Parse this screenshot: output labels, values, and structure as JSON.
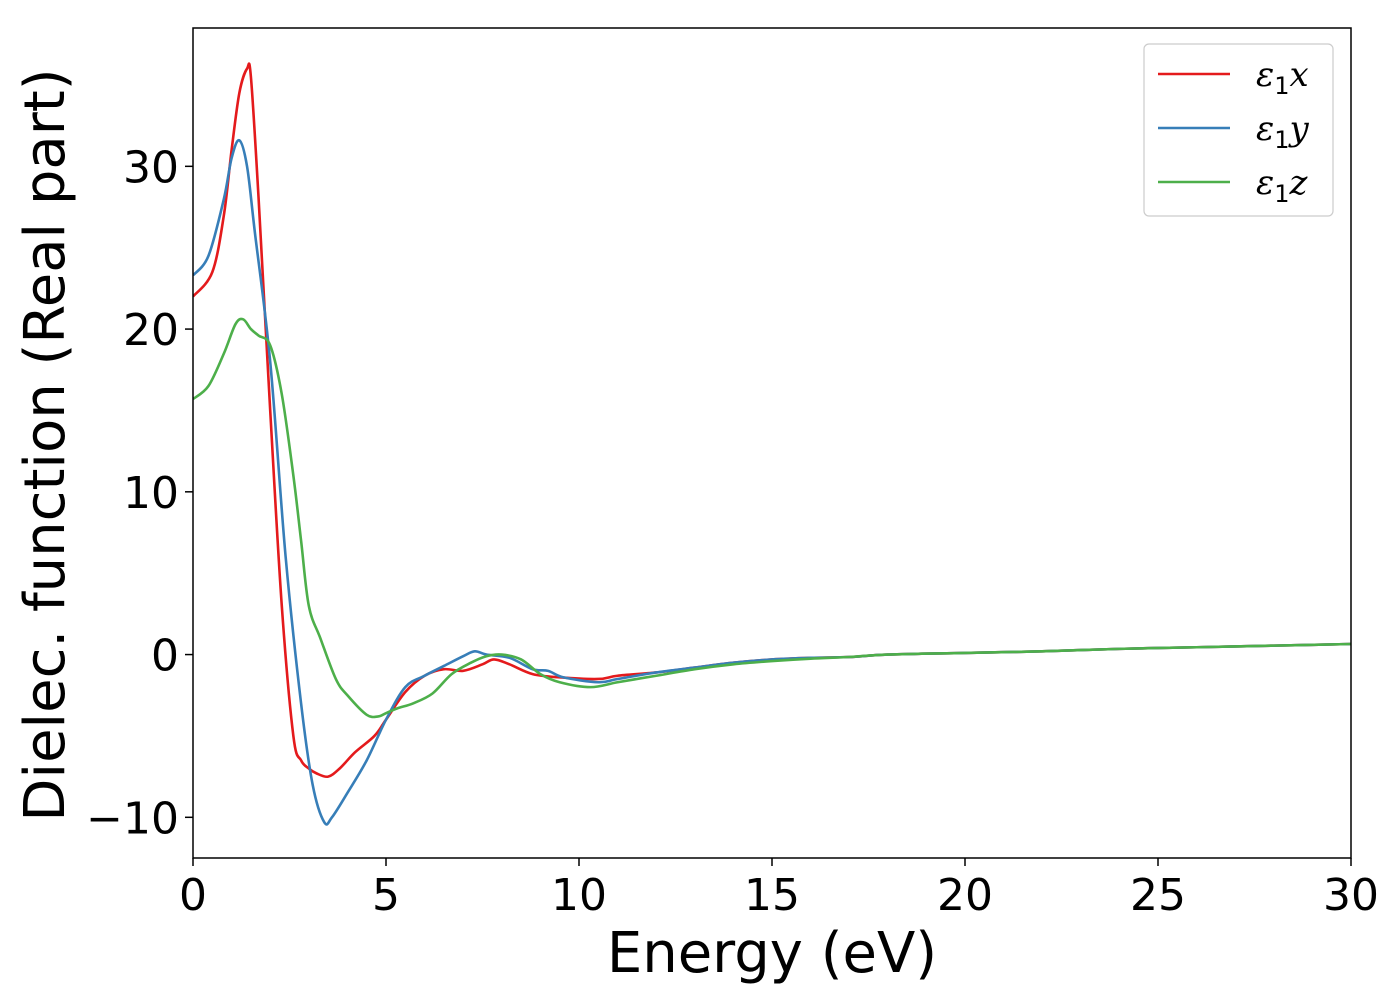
{
  "chart_data": {
    "type": "line",
    "xlabel": "Energy (eV)",
    "ylabel": "Dielec. function (Real part)",
    "xlim": [
      0,
      30
    ],
    "ylim": [
      -12.5,
      38.5
    ],
    "xticks": [
      0,
      5,
      10,
      15,
      20,
      25,
      30
    ],
    "yticks": [
      -10,
      0,
      10,
      20,
      30
    ],
    "xtick_labels": [
      "0",
      "5",
      "10",
      "15",
      "20",
      "25",
      "30"
    ],
    "ytick_labels": [
      "−10",
      "0",
      "10",
      "20",
      "30"
    ],
    "grid": false,
    "legend_position": "top-right",
    "series": [
      {
        "name": "ε1x",
        "name_base": "ε",
        "name_sub": "1",
        "name_var": "x",
        "color": "#e41a1c",
        "x": [
          0,
          0.5,
          0.8,
          1.0,
          1.2,
          1.4,
          1.5,
          1.7,
          2.0,
          2.3,
          2.6,
          2.8,
          3.0,
          3.2,
          3.5,
          3.8,
          4.2,
          4.7,
          5.0,
          5.5,
          6.0,
          6.5,
          7.0,
          7.5,
          7.8,
          8.2,
          8.8,
          9.5,
          10.5,
          11.0,
          12.0,
          13.0,
          14.0,
          15.0,
          16.0,
          17.0,
          18.0,
          20.0,
          22.0,
          24.0,
          26.0,
          28.0,
          30.0
        ],
        "y": [
          22,
          23.5,
          27,
          31,
          34.5,
          36,
          35.5,
          28,
          15,
          3,
          -5,
          -6.5,
          -7,
          -7.3,
          -7.5,
          -7,
          -6,
          -5,
          -4,
          -2.3,
          -1.3,
          -0.9,
          -1.0,
          -0.6,
          -0.3,
          -0.6,
          -1.2,
          -1.4,
          -1.5,
          -1.3,
          -1.1,
          -0.8,
          -0.5,
          -0.3,
          -0.2,
          -0.15,
          0.0,
          0.1,
          0.2,
          0.35,
          0.45,
          0.55,
          0.65
        ]
      },
      {
        "name": "ε1y",
        "name_base": "ε",
        "name_sub": "1",
        "name_var": "y",
        "color": "#377eb8",
        "x": [
          0,
          0.4,
          0.8,
          1.0,
          1.2,
          1.4,
          1.6,
          2.0,
          2.4,
          2.8,
          3.1,
          3.4,
          3.6,
          4.0,
          4.5,
          5.0,
          5.5,
          6.0,
          6.5,
          7.0,
          7.3,
          7.6,
          8.2,
          8.8,
          9.2,
          9.6,
          10.5,
          11.0,
          12.0,
          13.0,
          14.0,
          15.0,
          16.0,
          17.0,
          18.0,
          20.0,
          22.0,
          24.0,
          26.0,
          28.0,
          30.0
        ],
        "y": [
          23.3,
          24.5,
          28,
          30.5,
          31.6,
          30,
          26,
          18,
          6,
          -3,
          -8,
          -10.3,
          -10,
          -8.5,
          -6.5,
          -4,
          -2,
          -1.3,
          -0.7,
          -0.1,
          0.2,
          0.0,
          -0.2,
          -0.9,
          -1.0,
          -1.4,
          -1.7,
          -1.5,
          -1.1,
          -0.8,
          -0.5,
          -0.3,
          -0.2,
          -0.15,
          0.0,
          0.1,
          0.2,
          0.35,
          0.45,
          0.55,
          0.65
        ]
      },
      {
        "name": "ε1z",
        "name_base": "ε",
        "name_sub": "1",
        "name_var": "z",
        "color": "#4daf4a",
        "x": [
          0,
          0.4,
          0.8,
          1.1,
          1.3,
          1.5,
          1.7,
          2.0,
          2.3,
          2.6,
          2.8,
          3.0,
          3.3,
          3.7,
          4.0,
          4.5,
          4.8,
          5.0,
          5.3,
          5.7,
          6.2,
          6.7,
          7.2,
          7.6,
          8.0,
          8.5,
          9.0,
          9.5,
          10.3,
          11.0,
          12.0,
          13.0,
          14.0,
          15.0,
          16.0,
          17.0,
          18.0,
          20.0,
          22.0,
          24.0,
          26.0,
          28.0,
          30.0
        ],
        "y": [
          15.7,
          16.5,
          18.5,
          20.3,
          20.6,
          20.0,
          19.6,
          19.0,
          16,
          11,
          7,
          3,
          1,
          -1.5,
          -2.5,
          -3.7,
          -3.8,
          -3.6,
          -3.3,
          -3.0,
          -2.4,
          -1.2,
          -0.5,
          -0.1,
          0.0,
          -0.3,
          -1.2,
          -1.7,
          -2.0,
          -1.7,
          -1.3,
          -0.9,
          -0.6,
          -0.4,
          -0.25,
          -0.15,
          0.0,
          0.1,
          0.2,
          0.35,
          0.45,
          0.55,
          0.65
        ]
      }
    ]
  }
}
